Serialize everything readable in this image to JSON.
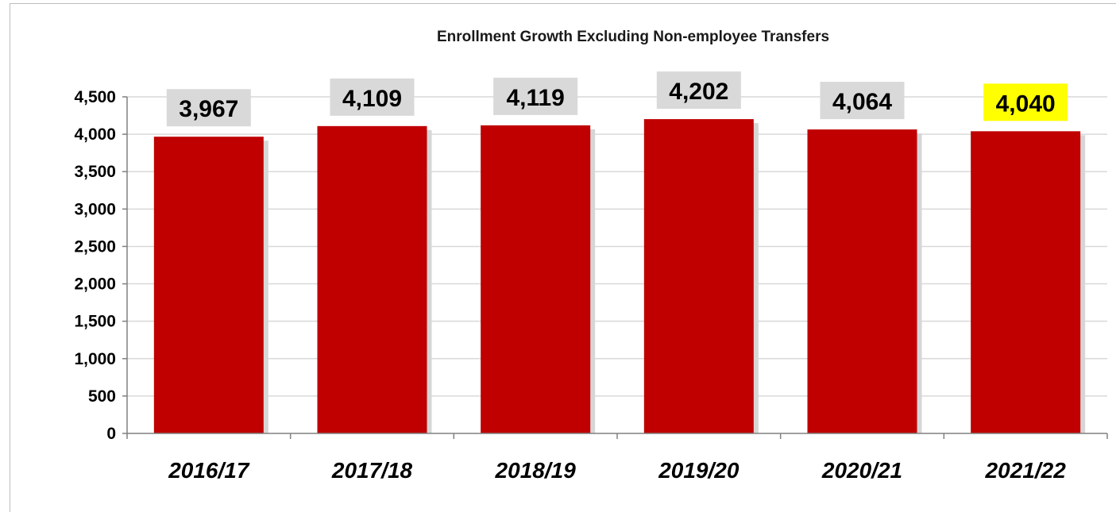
{
  "chart_data": {
    "type": "bar",
    "title": "Enrollment Growth Excluding Non-employee Transfers",
    "categories": [
      "2016/17",
      "2017/18",
      "2018/19",
      "2019/20",
      "2020/21",
      "2021/22"
    ],
    "values": [
      3967,
      4109,
      4119,
      4202,
      4064,
      4040
    ],
    "data_labels": [
      "3,967",
      "4,109",
      "4,119",
      "4,202",
      "4,064",
      "4,040"
    ],
    "highlighted_index": 5,
    "y_ticks": [
      0,
      500,
      1000,
      1500,
      2000,
      2500,
      3000,
      3500,
      4000,
      4500
    ],
    "y_tick_labels": [
      "0",
      "500",
      "1,000",
      "1,500",
      "2,000",
      "2,500",
      "3,000",
      "3,500",
      "4,000",
      "4,500"
    ],
    "ylim": [
      0,
      4500
    ],
    "grid": true,
    "legend": "none",
    "colors": {
      "bar": "#c00000",
      "bar_shadow": "#d6d6d6",
      "label_box": "#d9d9d9",
      "label_box_highlight": "#ffff00",
      "gridline": "#d9d9d9",
      "axis": "#808080"
    }
  }
}
